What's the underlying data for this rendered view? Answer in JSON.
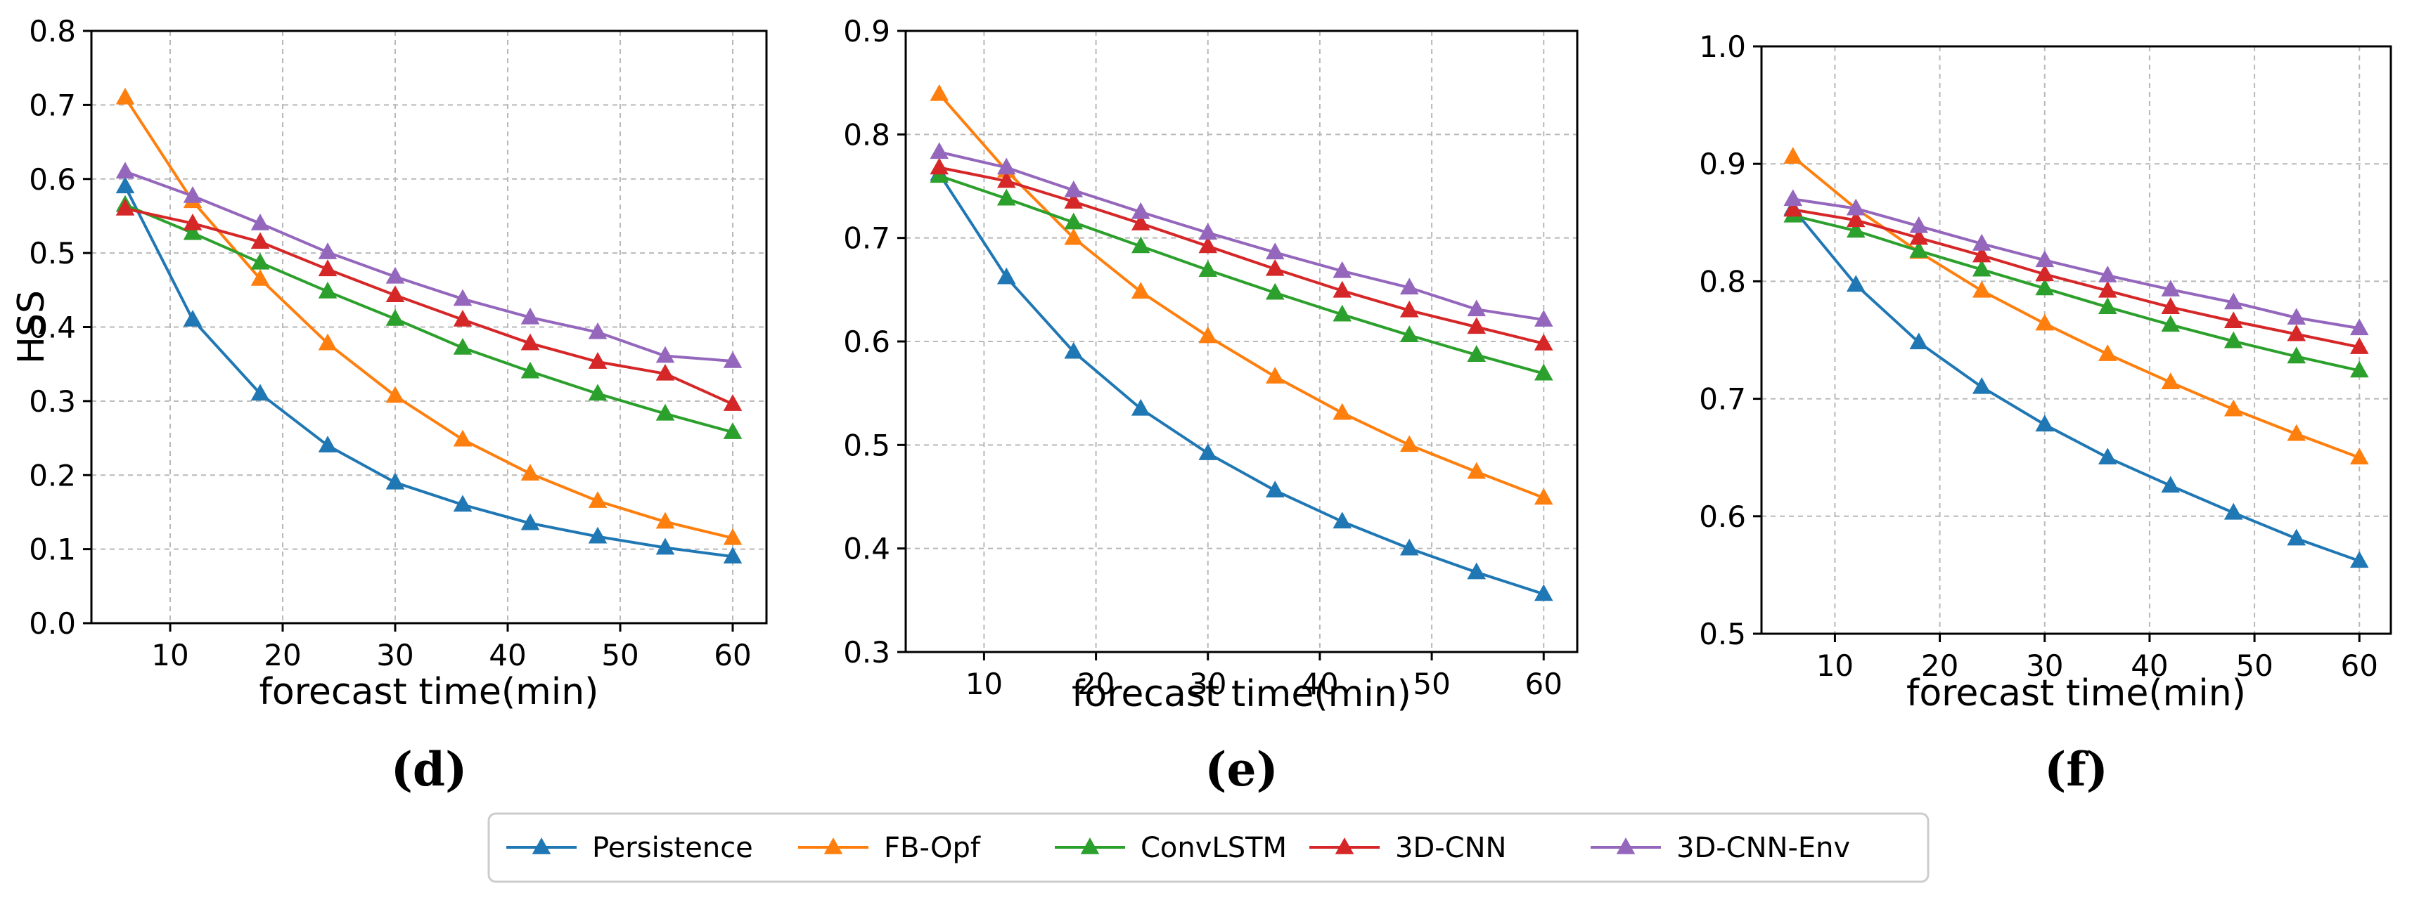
{
  "colors": {
    "Persistence": "#1f77b4",
    "FB-Opf": "#ff7f0e",
    "ConvLSTM": "#2ca02c",
    "3D-CNN": "#d62728",
    "3D-CNN-Env": "#9467bd"
  },
  "legend": [
    "Persistence",
    "FB-Opf",
    "ConvLSTM",
    "3D-CNN",
    "3D-CNN-Env"
  ],
  "chart_data": [
    {
      "type": "line",
      "panel_label": "(d)",
      "xlabel": "forecast time(min)",
      "ylabel": "HSS",
      "x": [
        6,
        12,
        18,
        24,
        30,
        36,
        42,
        48,
        54,
        60
      ],
      "xlim": [
        3,
        63
      ],
      "xticks": [
        10,
        20,
        30,
        40,
        50,
        60
      ],
      "ylim": [
        0.0,
        0.8
      ],
      "yticks": [
        "0.0",
        "0.1",
        "0.2",
        "0.3",
        "0.4",
        "0.5",
        "0.6",
        "0.7",
        "0.8"
      ],
      "grid": true,
      "series": [
        {
          "name": "Persistence",
          "values": [
            0.59,
            0.41,
            0.31,
            0.24,
            0.19,
            0.16,
            0.135,
            0.117,
            0.102,
            0.09
          ]
        },
        {
          "name": "FB-Opf",
          "values": [
            0.71,
            0.57,
            0.465,
            0.378,
            0.307,
            0.248,
            0.202,
            0.165,
            0.137,
            0.115
          ]
        },
        {
          "name": "ConvLSTM",
          "values": [
            0.565,
            0.527,
            0.487,
            0.448,
            0.411,
            0.372,
            0.34,
            0.31,
            0.283,
            0.258
          ]
        },
        {
          "name": "3D-CNN",
          "values": [
            0.56,
            0.54,
            0.515,
            0.478,
            0.443,
            0.41,
            0.378,
            0.353,
            0.337,
            0.296
          ]
        },
        {
          "name": "3D-CNN-Env",
          "values": [
            0.61,
            0.577,
            0.54,
            0.501,
            0.468,
            0.438,
            0.413,
            0.393,
            0.361,
            0.354
          ]
        }
      ]
    },
    {
      "type": "line",
      "panel_label": "(e)",
      "xlabel": "forecast time(min)",
      "ylabel": "",
      "x": [
        6,
        12,
        18,
        24,
        30,
        36,
        42,
        48,
        54,
        60
      ],
      "xlim": [
        3,
        63
      ],
      "xticks": [
        10,
        20,
        30,
        40,
        50,
        60
      ],
      "ylim": [
        0.3,
        0.9
      ],
      "yticks": [
        "0.3",
        "0.4",
        "0.5",
        "0.6",
        "0.7",
        "0.8",
        "0.9"
      ],
      "grid": true,
      "series": [
        {
          "name": "Persistence",
          "values": [
            0.762,
            0.662,
            0.59,
            0.535,
            0.492,
            0.456,
            0.426,
            0.4,
            0.377,
            0.356
          ]
        },
        {
          "name": "FB-Opf",
          "values": [
            0.839,
            0.765,
            0.7,
            0.648,
            0.605,
            0.566,
            0.531,
            0.5,
            0.474,
            0.449
          ]
        },
        {
          "name": "ConvLSTM",
          "values": [
            0.76,
            0.738,
            0.715,
            0.692,
            0.669,
            0.647,
            0.626,
            0.606,
            0.587,
            0.569
          ]
        },
        {
          "name": "3D-CNN",
          "values": [
            0.768,
            0.755,
            0.735,
            0.714,
            0.692,
            0.67,
            0.649,
            0.63,
            0.614,
            0.598
          ]
        },
        {
          "name": "3D-CNN-Env",
          "values": [
            0.783,
            0.768,
            0.746,
            0.725,
            0.705,
            0.686,
            0.668,
            0.652,
            0.631,
            0.621
          ]
        }
      ]
    },
    {
      "type": "line",
      "panel_label": "(f)",
      "xlabel": "forecast time(min)",
      "ylabel": "",
      "x": [
        6,
        12,
        18,
        24,
        30,
        36,
        42,
        48,
        54,
        60
      ],
      "xlim": [
        3,
        63
      ],
      "xticks": [
        10,
        20,
        30,
        40,
        50,
        60
      ],
      "ylim": [
        0.5,
        1.0
      ],
      "yticks": [
        "0.5",
        "0.6",
        "0.7",
        "0.8",
        "0.9",
        "1.0"
      ],
      "grid": true,
      "series": [
        {
          "name": "Persistence",
          "values": [
            0.862,
            0.797,
            0.748,
            0.71,
            0.678,
            0.65,
            0.626,
            0.603,
            0.581,
            0.562
          ]
        },
        {
          "name": "FB-Opf",
          "values": [
            0.906,
            0.862,
            0.825,
            0.792,
            0.764,
            0.738,
            0.714,
            0.691,
            0.67,
            0.65
          ]
        },
        {
          "name": "ConvLSTM",
          "values": [
            0.856,
            0.843,
            0.826,
            0.81,
            0.794,
            0.778,
            0.763,
            0.749,
            0.736,
            0.724
          ]
        },
        {
          "name": "3D-CNN",
          "values": [
            0.861,
            0.852,
            0.837,
            0.822,
            0.806,
            0.792,
            0.778,
            0.766,
            0.755,
            0.744
          ]
        },
        {
          "name": "3D-CNN-Env",
          "values": [
            0.87,
            0.862,
            0.847,
            0.832,
            0.818,
            0.805,
            0.793,
            0.782,
            0.769,
            0.76
          ]
        }
      ]
    }
  ]
}
